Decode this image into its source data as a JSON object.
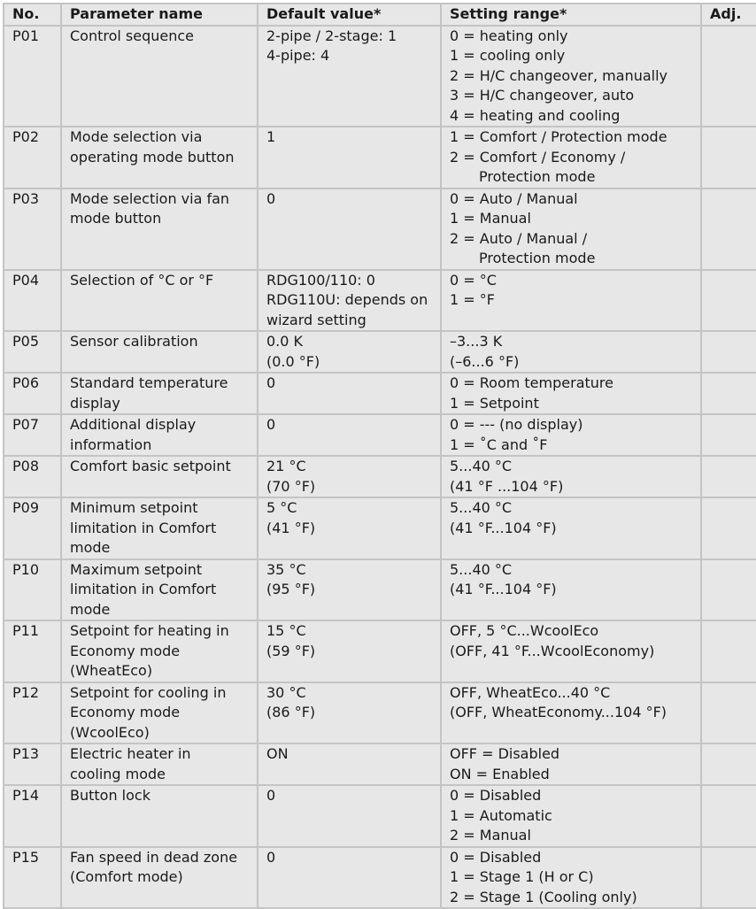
{
  "headers": [
    "No.",
    "Parameter name",
    "Default value*",
    "Setting range*",
    "Adj."
  ],
  "rows": [
    {
      "no": "P01",
      "name": [
        "Control sequence"
      ],
      "default": [
        "2-pipe / 2-stage: 1",
        "4-pipe: 4"
      ],
      "range": [
        "0 = heating only",
        "1 = cooling only",
        "2 = H/C changeover, manually",
        "3 = H/C changeover, auto",
        "4 = heating and cooling"
      ],
      "adj": ""
    },
    {
      "no": "P02",
      "name": [
        "Mode selection via",
        "operating mode button"
      ],
      "default": [
        "1"
      ],
      "range": [
        "1 = Comfort / Protection mode",
        "2 = Comfort / Economy /",
        "Protection mode"
      ],
      "adj": ""
    },
    {
      "no": "P03",
      "name": [
        "Mode selection via fan",
        "mode button"
      ],
      "default": [
        "0"
      ],
      "range": [
        "0 = Auto / Manual",
        "1 = Manual",
        "2 = Auto / Manual /",
        "Protection mode"
      ],
      "adj": ""
    },
    {
      "no": "P04",
      "name": [
        "Selection of °C or °F"
      ],
      "default": [
        "RDG100/110: 0",
        "RDG110U: depends on",
        "wizard setting"
      ],
      "range": [
        "0 = °C",
        "1 = °F"
      ],
      "adj": ""
    },
    {
      "no": "P05",
      "name": [
        "Sensor calibration"
      ],
      "default": [
        "0.0 K",
        "(0.0 °F)"
      ],
      "range": [
        "–3...3 K",
        "(–6...6 °F)"
      ],
      "adj": ""
    },
    {
      "no": "P06",
      "name": [
        "Standard temperature",
        "display"
      ],
      "default": [
        "0"
      ],
      "range": [
        "0 = Room temperature",
        "1 = Setpoint"
      ],
      "adj": ""
    },
    {
      "no": "P07",
      "name": [
        "Additional display",
        "information"
      ],
      "default": [
        "0"
      ],
      "range": [
        "0 = --- (no display)",
        "1 = ˚C and ˚F"
      ],
      "adj": ""
    },
    {
      "no": "P08",
      "name": [
        "Comfort basic setpoint"
      ],
      "default": [
        "21 °C",
        "(70 °F)"
      ],
      "range": [
        "5...40 °C",
        "(41 °F ...104 °F)"
      ],
      "adj": ""
    },
    {
      "no": "P09",
      "name": [
        "Minimum setpoint",
        "limitation in Comfort",
        "mode"
      ],
      "default": [
        "5 °C",
        "(41 °F)"
      ],
      "range": [
        "5...40 °C",
        "(41 °F...104 °F)"
      ],
      "adj": ""
    },
    {
      "no": "P10",
      "name": [
        "Maximum setpoint",
        "limitation in Comfort",
        "mode"
      ],
      "default": [
        "35 °C",
        "(95 °F)"
      ],
      "range": [
        "5...40 °C",
        "(41 °F...104 °F)"
      ],
      "adj": ""
    },
    {
      "no": "P11",
      "name": [
        "Setpoint for heating in",
        "Economy mode",
        "(WheatEco)"
      ],
      "default": [
        "15 °C",
        "(59 °F)"
      ],
      "range": [
        "OFF, 5 °C...WcoolEco",
        "(OFF, 41 °F...WcoolEconomy)"
      ],
      "adj": ""
    },
    {
      "no": "P12",
      "name": [
        "Setpoint for cooling in",
        "Economy mode",
        "(WcoolEco)"
      ],
      "default": [
        "30 °C",
        "(86 °F)"
      ],
      "range": [
        "OFF, WheatEco...40 °C",
        "(OFF, WheatEconomy...104 °F)"
      ],
      "adj": ""
    },
    {
      "no": "P13",
      "name": [
        "Electric heater in",
        "cooling mode"
      ],
      "default": [
        "ON"
      ],
      "range": [
        "OFF = Disabled",
        "ON  = Enabled"
      ],
      "adj": ""
    },
    {
      "no": "P14",
      "name": [
        "Button lock"
      ],
      "default": [
        "0"
      ],
      "range": [
        "0 = Disabled",
        "1 = Automatic",
        "2 = Manual"
      ],
      "adj": ""
    },
    {
      "no": "P15",
      "name": [
        "Fan speed in dead zone",
        "(Comfort mode)"
      ],
      "default": [
        "0"
      ],
      "range": [
        "0 = Disabled",
        "1 = Stage 1 (H or C)",
        "2 = Stage 1 (Cooling only)"
      ],
      "adj": ""
    }
  ]
}
